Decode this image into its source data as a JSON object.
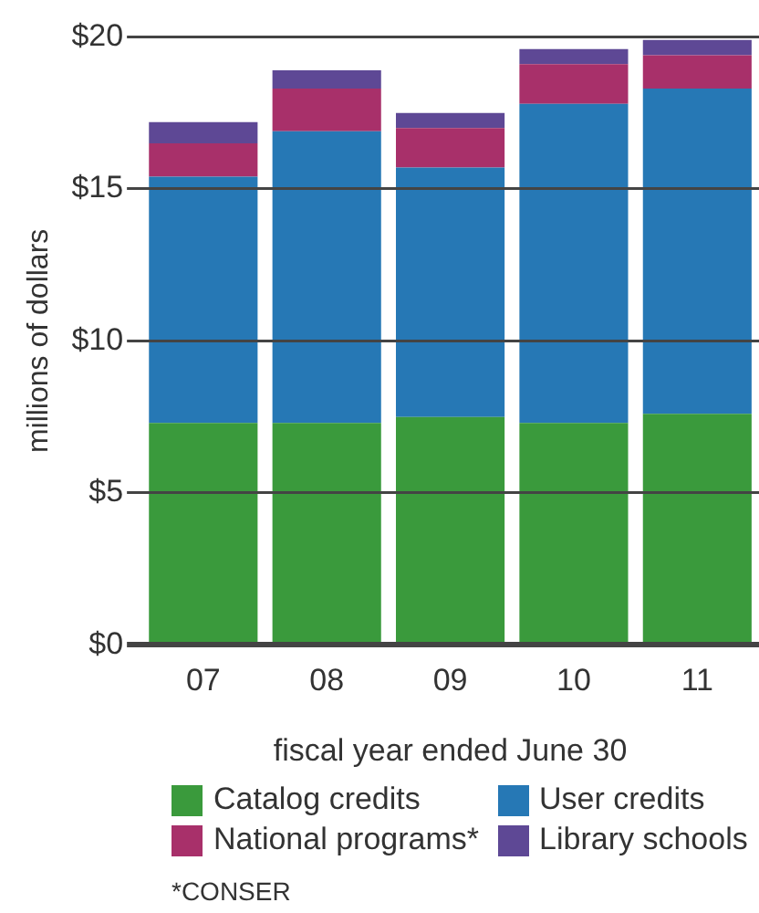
{
  "chart_data": {
    "type": "bar",
    "stacked": true,
    "xlabel": "fiscal year ended June 30",
    "ylabel": "millions of dollars",
    "categories": [
      "07",
      "08",
      "09",
      "10",
      "11"
    ],
    "series": [
      {
        "name": "Catalog credits",
        "color": "#3a9a3c",
        "values": [
          7.3,
          7.3,
          7.5,
          7.3,
          7.6
        ]
      },
      {
        "name": "User credits",
        "color": "#2678b5",
        "values": [
          8.1,
          9.6,
          8.2,
          10.5,
          10.7
        ]
      },
      {
        "name": "National programs*",
        "color": "#a8306a",
        "values": [
          1.1,
          1.4,
          1.3,
          1.3,
          1.1
        ]
      },
      {
        "name": "Library schools",
        "color": "#5e4895",
        "values": [
          0.7,
          0.6,
          0.5,
          0.5,
          0.5
        ]
      }
    ],
    "ylim": [
      0,
      20
    ],
    "yticks": [
      {
        "value": 0,
        "label": "$0"
      },
      {
        "value": 5,
        "label": "$5"
      },
      {
        "value": 10,
        "label": "$10"
      },
      {
        "value": 15,
        "label": "$15"
      },
      {
        "value": 20,
        "label": "$20"
      }
    ],
    "grid": "y",
    "legend": "bottom",
    "annotations": [
      "*CONSER"
    ]
  }
}
